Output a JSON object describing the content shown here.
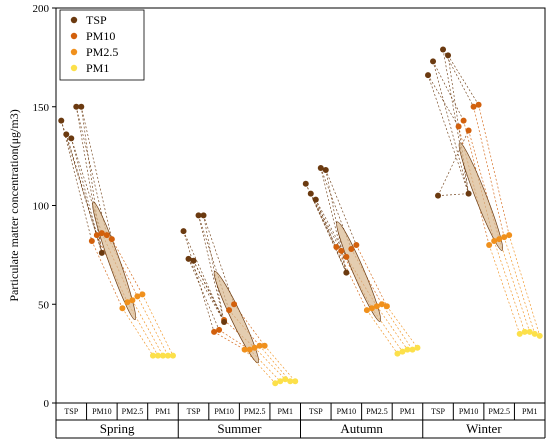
{
  "chart_data": {
    "type": "scatter",
    "ylabel": "Particulate matter concentration(μg/m3)",
    "ylim": [
      0,
      200
    ],
    "yticks": [
      0,
      50,
      100,
      150,
      200
    ],
    "legend": {
      "placement": "top-left",
      "entries": [
        {
          "name": "TSP",
          "color": "#6b3a10"
        },
        {
          "name": "PM10",
          "color": "#d2600c"
        },
        {
          "name": "PM2.5",
          "color": "#f0901c"
        },
        {
          "name": "PM1",
          "color": "#fce04a"
        }
      ]
    },
    "sub_categories": [
      "TSP",
      "PM10",
      "PM2.5",
      "PM1"
    ],
    "groups": [
      {
        "name": "Spring",
        "mean": [
          76,
          55,
          50
        ],
        "points": {
          "TSP": [
            143,
            136,
            134,
            150,
            150
          ],
          "PM10": [
            82,
            85,
            86,
            85,
            83
          ],
          "PM2.5": [
            48,
            51,
            52,
            54,
            55
          ],
          "PM1": [
            24,
            24,
            24,
            24,
            24
          ]
        }
      },
      {
        "name": "Summer",
        "mean": [
          41,
          35,
          28
        ],
        "points": {
          "TSP": [
            87,
            73,
            72,
            95,
            95
          ],
          "PM10": [
            36,
            37,
            42,
            47,
            50
          ],
          "PM2.5": [
            27,
            27,
            28,
            29,
            29
          ],
          "PM1": [
            10,
            11,
            12,
            11,
            11
          ]
        }
      },
      {
        "name": "Autumn",
        "mean": [
          66,
          55,
          49
        ],
        "points": {
          "TSP": [
            111,
            106,
            103,
            119,
            118
          ],
          "PM10": [
            79,
            77,
            74,
            78,
            80
          ],
          "PM2.5": [
            47,
            48,
            49,
            50,
            49
          ],
          "PM1": [
            25,
            26,
            27,
            27,
            28
          ]
        }
      },
      {
        "name": "Winter",
        "mean": [
          106,
          95,
          85
        ],
        "points": {
          "TSP": [
            166,
            173,
            105,
            179,
            176
          ],
          "PM10": [
            140,
            143,
            138,
            150,
            151
          ],
          "PM2.5": [
            80,
            82,
            83,
            84,
            85
          ],
          "PM1": [
            35,
            36,
            36,
            35,
            34
          ]
        }
      }
    ]
  }
}
